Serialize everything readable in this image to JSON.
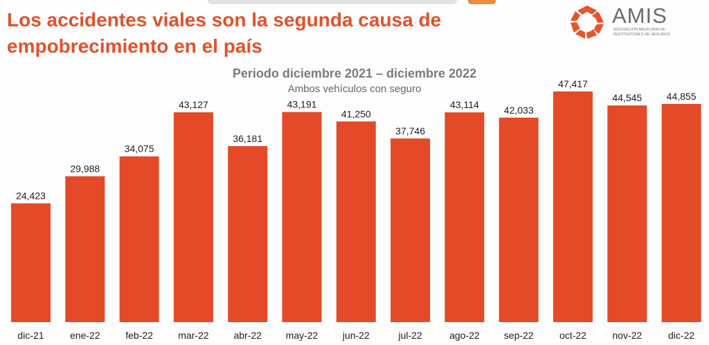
{
  "headline": {
    "line1": "Los accidentes viales son la segunda causa de",
    "line2": "empobrecimiento en el país"
  },
  "logo": {
    "name": "AMIS",
    "subtitle_line1": "Asociación Mexicana de",
    "subtitle_line2": "Instituciones de Seguros",
    "icon": "amis-logo-icon"
  },
  "colors": {
    "bar": "#e44a27",
    "headline": "#e4502a",
    "text": "#1e1e1e"
  },
  "chart_data": {
    "type": "bar",
    "title": "Periodo diciembre 2021 – diciembre 2022",
    "subtitle": "Ambos vehículos con seguro",
    "categories": [
      "dic-21",
      "ene-22",
      "feb-22",
      "mar-22",
      "abr-22",
      "may-22",
      "jun-22",
      "jul-22",
      "ago-22",
      "sep-22",
      "oct-22",
      "nov-22",
      "dic-22"
    ],
    "values": [
      24423,
      29988,
      34075,
      43127,
      36181,
      43191,
      41250,
      37746,
      43114,
      42033,
      47417,
      44545,
      44855
    ],
    "labels": [
      "24,423",
      "29,988",
      "34,075",
      "43,127",
      "36,181",
      "43,191",
      "41,250",
      "37,746",
      "43,114",
      "42,033",
      "47,417",
      "44,545",
      "44,855"
    ],
    "ylim": [
      0,
      47417
    ],
    "xlabel": "",
    "ylabel": "",
    "grid": false
  }
}
